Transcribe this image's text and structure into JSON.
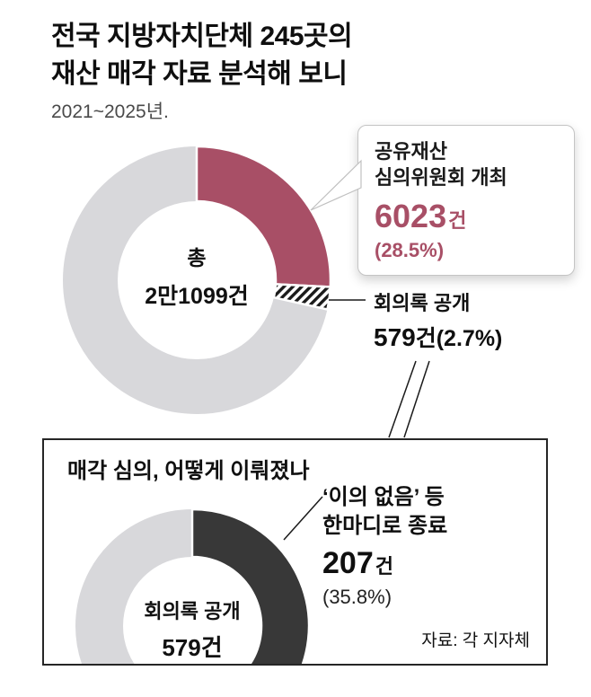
{
  "header": {
    "title_line1": "전국 지방자치단체 245곳의",
    "title_line2": "재산 매각 자료 분석해 보니",
    "subtitle": "2021~2025년."
  },
  "top_chart": {
    "center_line1": "총",
    "center_line2": "2만1099건",
    "callout": {
      "line1": "공유재산",
      "line2": "심의위원회 개최",
      "value": "6023",
      "unit": "건",
      "percent": "(28.5%)"
    },
    "minutes": {
      "label": "회의록 공개",
      "value": "579",
      "unit": "건",
      "percent": "(2.7%)"
    }
  },
  "bottom_section": {
    "title": "매각 심의, 어떻게 이뤄졌나",
    "center_line1": "회의록 공개",
    "center_line2": "579건",
    "callout": {
      "line1": "‘이의 없음’ 등",
      "line2": "한마디로 종료",
      "value": "207",
      "unit": "건",
      "percent": "(35.8%)"
    },
    "source": "자료: 각 지자체"
  },
  "colors": {
    "accent_maroon": "#a84f66",
    "ring_gray": "#d8d8db",
    "dark": "#383838"
  },
  "chart_data": [
    {
      "type": "pie",
      "title": "전국 지방자치단체 245곳의 재산 매각 자료 분석 (2021~2025년)",
      "center_label": "총 2만1099건",
      "total": 21099,
      "slices": [
        {
          "label": "공유재산 심의위원회 개최",
          "value": 6023,
          "percent": 28.5,
          "color": "#a84f66"
        },
        {
          "label": "회의록 공개",
          "value": 579,
          "percent": 2.7,
          "style": "hatched"
        }
      ],
      "remainder_color": "#d8d8db",
      "start_angle": "12시 방향",
      "legend": "off"
    },
    {
      "type": "pie",
      "title": "매각 심의, 어떻게 이뤄졌나",
      "center_label": "회의록 공개 579건",
      "total": 579,
      "slices": [
        {
          "label": "‘이의 없음’ 등 한마디로 종료",
          "value": 207,
          "percent": 35.8,
          "color": "#383838"
        }
      ],
      "remainder_color": "#d8d8db",
      "start_angle": "12시 방향",
      "legend": "off"
    }
  ]
}
